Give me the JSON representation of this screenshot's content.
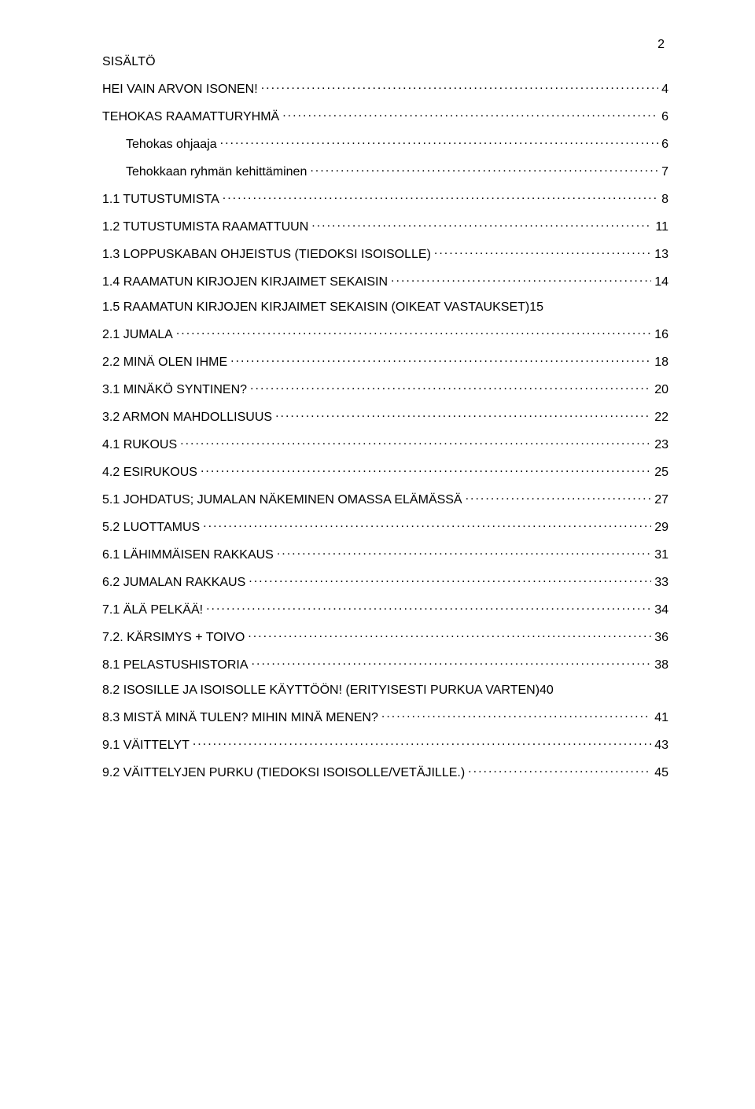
{
  "page_number": "2",
  "heading": "SISÄLTÖ",
  "background_color": "#ffffff",
  "text_color": "#000000",
  "font_size_pt": 12,
  "entries": [
    {
      "label": "HEI VAIN ARVON ISONEN!",
      "page": "4",
      "indent": 0
    },
    {
      "label": "TEHOKAS RAAMATTURYHMÄ",
      "page": "6",
      "indent": 0
    },
    {
      "label": "Tehokas ohjaaja",
      "page": "6",
      "indent": 1
    },
    {
      "label": "Tehokkaan ryhmän kehittäminen",
      "page": "7",
      "indent": 1
    },
    {
      "label": "1.1 TUTUSTUMISTA",
      "page": "8",
      "indent": 0
    },
    {
      "label": "1.2 TUTUSTUMISTA RAAMATTUUN",
      "page": "11",
      "indent": 0
    },
    {
      "label": "1.3 LOPPUSKABAN OHJEISTUS (TIEDOKSI ISOISOLLE)",
      "page": "13",
      "indent": 0
    },
    {
      "label": "1.4 RAAMATUN KIRJOJEN KIRJAIMET SEKAISIN",
      "page": "14",
      "indent": 0
    },
    {
      "label": "1.5 RAAMATUN KIRJOJEN KIRJAIMET SEKAISIN (OIKEAT VASTAUKSET)",
      "page": "15",
      "indent": 0,
      "no_leader": true
    },
    {
      "label": "2.1 JUMALA",
      "page": "16",
      "indent": 0
    },
    {
      "label": "2.2 MINÄ OLEN IHME",
      "page": "18",
      "indent": 0
    },
    {
      "label": "3.1 MINÄKÖ SYNTINEN?",
      "page": "20",
      "indent": 0
    },
    {
      "label": "3.2 ARMON MAHDOLLISUUS",
      "page": "22",
      "indent": 0
    },
    {
      "label": "4.1 RUKOUS",
      "page": "23",
      "indent": 0
    },
    {
      "label": "4.2 ESIRUKOUS",
      "page": "25",
      "indent": 0
    },
    {
      "label": "5.1 JOHDATUS; JUMALAN NÄKEMINEN OMASSA ELÄMÄSSÄ",
      "page": "27",
      "indent": 0
    },
    {
      "label": "5.2 LUOTTAMUS",
      "page": "29",
      "indent": 0
    },
    {
      "label": "6.1 LÄHIMMÄISEN RAKKAUS",
      "page": "31",
      "indent": 0
    },
    {
      "label": "6.2 JUMALAN RAKKAUS",
      "page": "33",
      "indent": 0
    },
    {
      "label": "7.1 ÄLÄ PELKÄÄ!",
      "page": "34",
      "indent": 0
    },
    {
      "label": "7.2. KÄRSIMYS + TOIVO",
      "page": "36",
      "indent": 0
    },
    {
      "label": "8.1 PELASTUSHISTORIA",
      "page": "38",
      "indent": 0
    },
    {
      "label": "8.2 ISOSILLE JA ISOISOLLE KÄYTTÖÖN! (ERITYISESTI PURKUA VARTEN)",
      "page": "40",
      "indent": 0,
      "no_leader": true
    },
    {
      "label": "8.3 MISTÄ MINÄ TULEN? MIHIN MINÄ MENEN?",
      "page": "41",
      "indent": 0
    },
    {
      "label": "9.1 VÄITTELYT",
      "page": "43",
      "indent": 0
    },
    {
      "label": "9.2 VÄITTELYJEN PURKU (TIEDOKSI ISOISOLLE/VETÄJILLE.)",
      "page": "45",
      "indent": 0
    }
  ]
}
